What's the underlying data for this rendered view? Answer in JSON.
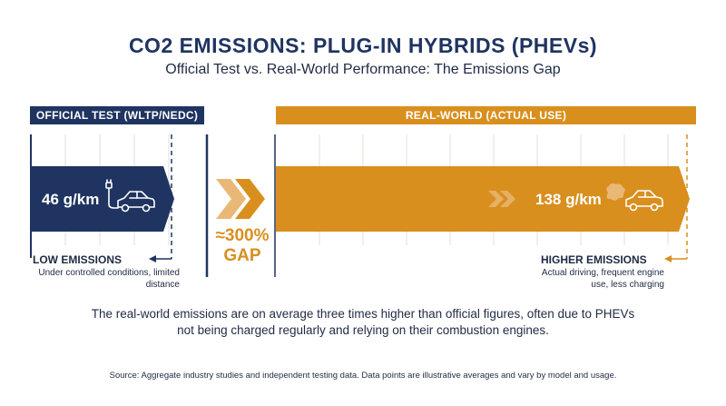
{
  "title": "CO2 EMISSIONS: PLUG-IN HYBRIDS (PHEVs)",
  "subtitle": "Official Test vs. Real-World Performance: The Emissions Gap",
  "colors": {
    "navy": "#1f3461",
    "orange": "#d98f1e",
    "light_orange": "#e9b877"
  },
  "chart_data": {
    "type": "bar",
    "orientation": "horizontal",
    "categories": [
      "OFFICIAL TEST (WLTP/NEDC)",
      "REAL-WORLD (ACTUAL USE)"
    ],
    "values": [
      46,
      138
    ],
    "value_labels": [
      "46 g/km",
      "138 g/km"
    ],
    "unit": "g/km",
    "gap_label_line1": "≈300%",
    "gap_label_line2": "GAP",
    "grid": true
  },
  "official": {
    "header": "OFFICIAL TEST (WLTP/NEDC)",
    "value_label": "46 g/km",
    "emission_title": "LOW EMISSIONS",
    "emission_desc": "Under controlled conditions, limited distance",
    "icon": "plug-in-car-icon"
  },
  "real_world": {
    "header": "REAL-WORLD (ACTUAL USE)",
    "value_label": "138 g/km",
    "emission_title": "HIGHER EMISSIONS",
    "emission_desc": "Actual driving, frequent engine use, less charging",
    "icon": "car-with-exhaust-icon"
  },
  "summary": "The real-world emissions are on average three times higher than official figures, often due to PHEVs not being charged regularly and relying on their combustion engines.",
  "source": "Source: Aggregate industry studies and independent testing data. Data points are illustrative averages and vary by model and usage."
}
